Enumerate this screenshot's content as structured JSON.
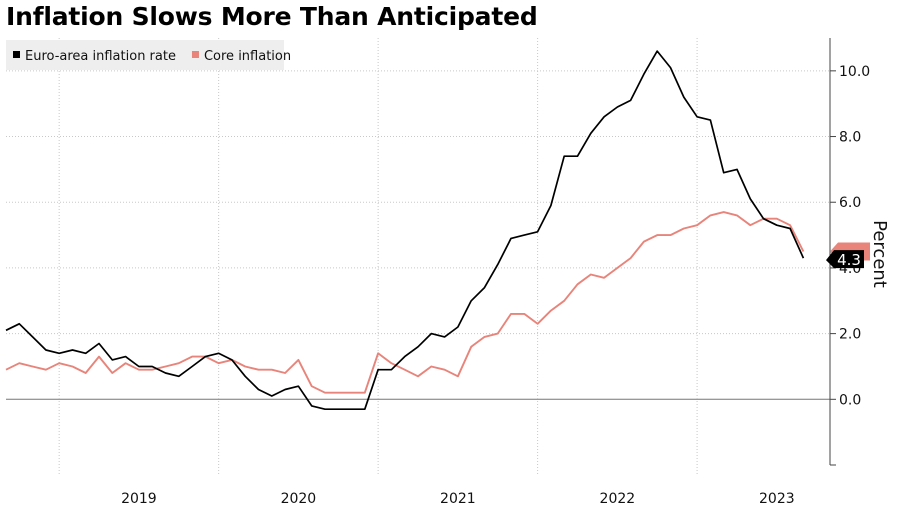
{
  "chart_data": {
    "type": "line",
    "title": "Inflation Slows More Than Anticipated",
    "ylabel": "Percent",
    "xlabel": "",
    "ylim": [
      -2,
      11
    ],
    "xlim": [
      "2018-09",
      "2023-11"
    ],
    "y_ticks": [
      0.0,
      2.0,
      4.0,
      6.0,
      8.0,
      10.0
    ],
    "y_tick_labels": [
      "0.0",
      "2.0",
      "4.0",
      "6.0",
      "8.0",
      "10.0"
    ],
    "x_tick_labels": [
      "2019",
      "2020",
      "2021",
      "2022",
      "2023"
    ],
    "grid": true,
    "legend_position": "top-left",
    "last_value_label": "4.3",
    "colors": {
      "Euro-area inflation rate": "#000000",
      "Core inflation": "#e8847a",
      "grid": "#c8c8c8"
    },
    "series": [
      {
        "name": "Euro-area inflation rate",
        "start": "2018-09",
        "values": [
          2.1,
          2.3,
          1.9,
          1.5,
          1.4,
          1.5,
          1.4,
          1.7,
          1.2,
          1.3,
          1.0,
          1.0,
          0.8,
          0.7,
          1.0,
          1.3,
          1.4,
          1.2,
          0.7,
          0.3,
          0.1,
          0.3,
          0.4,
          -0.2,
          -0.3,
          -0.3,
          -0.3,
          -0.3,
          0.9,
          0.9,
          1.3,
          1.6,
          2.0,
          1.9,
          2.2,
          3.0,
          3.4,
          4.1,
          4.9,
          5.0,
          5.1,
          5.9,
          7.4,
          7.4,
          8.1,
          8.6,
          8.9,
          9.1,
          9.9,
          10.6,
          10.1,
          9.2,
          8.6,
          8.5,
          6.9,
          7.0,
          6.1,
          5.5,
          5.3,
          5.2,
          4.3
        ]
      },
      {
        "name": "Core inflation",
        "start": "2018-09",
        "values": [
          0.9,
          1.1,
          1.0,
          0.9,
          1.1,
          1.0,
          0.8,
          1.3,
          0.8,
          1.1,
          0.9,
          0.9,
          1.0,
          1.1,
          1.3,
          1.3,
          1.1,
          1.2,
          1.0,
          0.9,
          0.9,
          0.8,
          1.2,
          0.4,
          0.2,
          0.2,
          0.2,
          0.2,
          1.4,
          1.1,
          0.9,
          0.7,
          1.0,
          0.9,
          0.7,
          1.6,
          1.9,
          2.0,
          2.6,
          2.6,
          2.3,
          2.7,
          3.0,
          3.5,
          3.8,
          3.7,
          4.0,
          4.3,
          4.8,
          5.0,
          5.0,
          5.2,
          5.3,
          5.6,
          5.7,
          5.6,
          5.3,
          5.5,
          5.5,
          5.3,
          4.5
        ]
      }
    ]
  }
}
